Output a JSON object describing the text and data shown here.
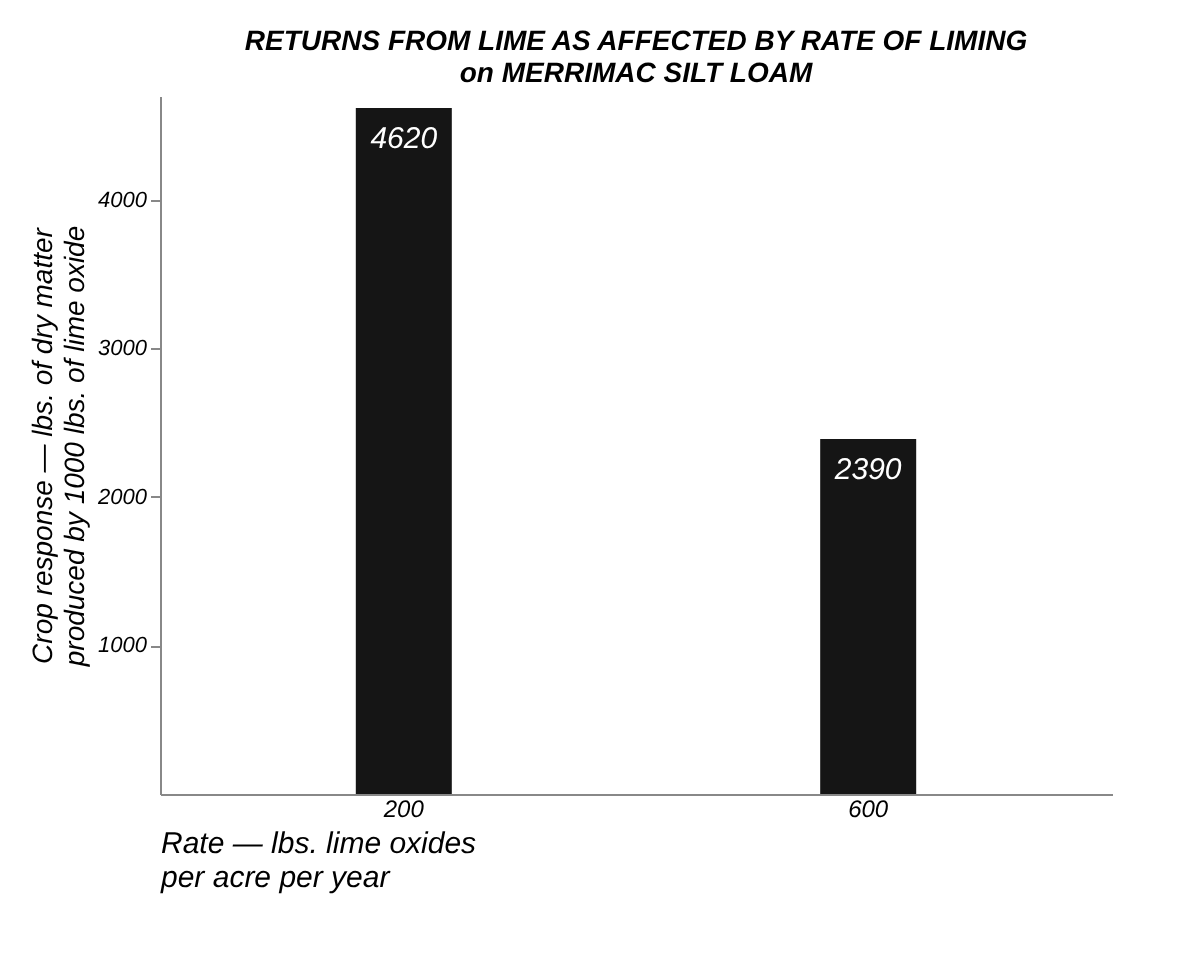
{
  "chart_data": {
    "type": "bar",
    "title": [
      "RETURNS FROM LIME AS AFFECTED BY RATE OF LIMING",
      "on MERRIMAC SILT LOAM"
    ],
    "ylabel": [
      "Crop response — lbs. of dry matter",
      "produced by 1000 lbs. of lime oxide"
    ],
    "xlabel": [
      "Rate — lbs. lime oxides",
      "per acre per year"
    ],
    "categories": [
      "200",
      "600"
    ],
    "values": [
      4620,
      2390
    ],
    "color": "#151515",
    "ylim": [
      0,
      4700
    ],
    "yticks": [
      1000,
      2000,
      3000,
      4000
    ],
    "data_labels": true,
    "grid": false
  }
}
